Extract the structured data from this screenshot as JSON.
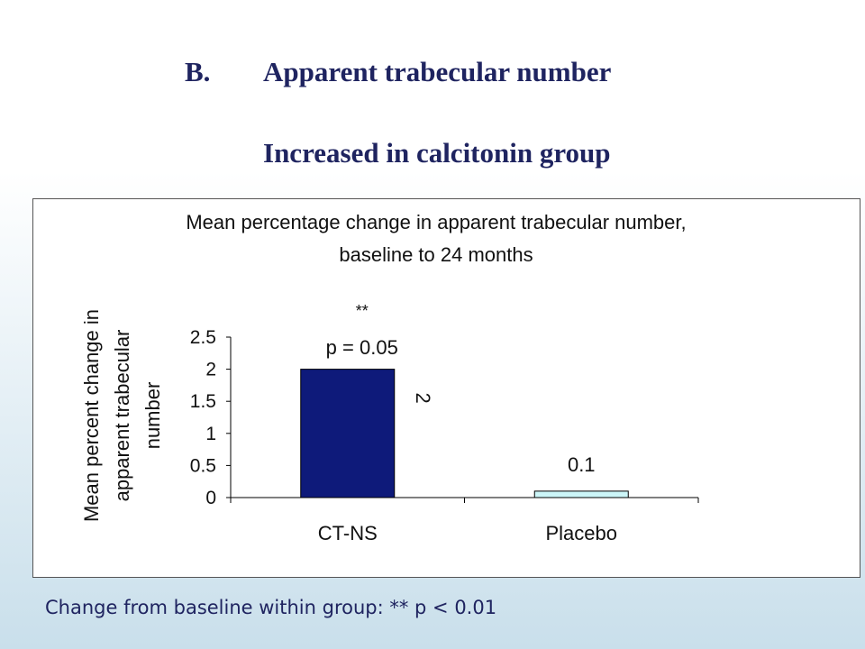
{
  "slide": {
    "section_letter": "B.",
    "heading": "Apparent trabecular number",
    "subheading": "Increased in calcitonin group",
    "footnote": "Change from baseline within group: ** p < 0.01"
  },
  "colors": {
    "title_text": "#1f2460",
    "bar_ctns": "#0e1a7a",
    "bar_placebo": "#ccf6f8"
  },
  "chart_data": {
    "type": "bar",
    "title": "Mean percentage change in apparent trabecular number,",
    "subtitle": "baseline to 24 months",
    "ylabel": [
      "Mean percent change in",
      "apparent trabecular",
      "number"
    ],
    "xlabel": "",
    "categories": [
      "CT-NS",
      "Placebo"
    ],
    "values": [
      2,
      0.1
    ],
    "data_labels": [
      "2",
      "0.1"
    ],
    "annotations": [
      {
        "category": "CT-NS",
        "lines": [
          "**",
          "p = 0.05"
        ]
      }
    ],
    "ylim": [
      0,
      2.5
    ],
    "yticks": [
      0,
      0.5,
      1,
      1.5,
      2,
      2.5
    ],
    "ytick_labels": [
      "0",
      "0.5",
      "1",
      "1.5",
      "2",
      "2.5"
    ],
    "grid": false,
    "legend": "none"
  }
}
